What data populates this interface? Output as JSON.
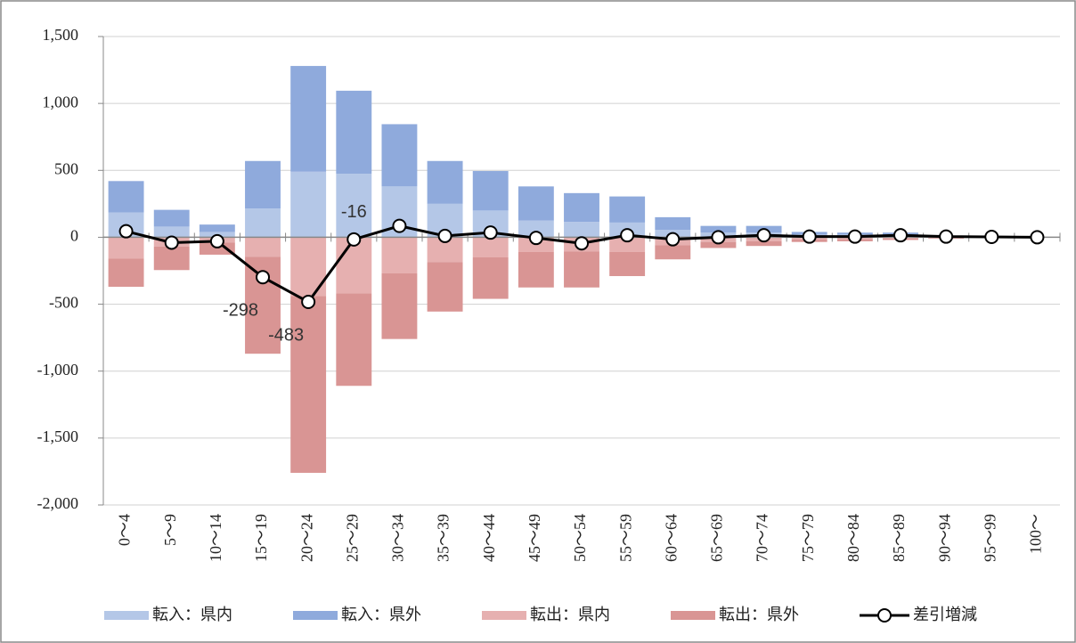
{
  "chart_data": {
    "type": "bar",
    "categories": [
      "0～4",
      "5～9",
      "10～14",
      "15～19",
      "20～24",
      "25～29",
      "30～34",
      "35～39",
      "40～44",
      "45～49",
      "50～54",
      "55～59",
      "60～64",
      "65～69",
      "70～74",
      "75～79",
      "80～84",
      "85～89",
      "90～94",
      "95～99",
      "100～"
    ],
    "series": [
      {
        "name": "転入：県内",
        "color": "#b4c7e7",
        "values": [
          185,
          80,
          40,
          215,
          490,
          475,
          380,
          250,
          200,
          125,
          115,
          110,
          55,
          35,
          35,
          20,
          20,
          15,
          5,
          2,
          0
        ]
      },
      {
        "name": "転入：県外",
        "color": "#8faadc",
        "values": [
          235,
          125,
          55,
          355,
          790,
          620,
          465,
          320,
          295,
          255,
          215,
          195,
          95,
          50,
          50,
          20,
          15,
          20,
          5,
          3,
          0
        ]
      },
      {
        "name": "転出：県内",
        "color": "#e6b0b0",
        "values": [
          -160,
          -70,
          -40,
          -145,
          -440,
          -420,
          -270,
          -185,
          -150,
          -110,
          -105,
          -110,
          -60,
          -35,
          -30,
          -15,
          -15,
          -10,
          -5,
          -2,
          0
        ]
      },
      {
        "name": "転出：県外",
        "color": "#d99594",
        "values": [
          -210,
          -175,
          -90,
          -725,
          -1320,
          -690,
          -490,
          -370,
          -310,
          -265,
          -270,
          -180,
          -105,
          -45,
          -35,
          -20,
          -15,
          -10,
          -5,
          -2,
          0
        ]
      },
      {
        "name": "差引増減",
        "color": "#000000",
        "type": "line",
        "values": [
          45,
          -40,
          -30,
          -298,
          -483,
          -16,
          85,
          10,
          35,
          -5,
          -45,
          15,
          -15,
          0,
          15,
          5,
          5,
          15,
          5,
          3,
          0
        ],
        "value_labels": [
          null,
          null,
          null,
          "-298",
          "-483",
          "-16",
          null,
          null,
          null,
          null,
          null,
          null,
          null,
          null,
          null,
          null,
          null,
          null,
          null,
          null,
          null
        ]
      }
    ],
    "ylim": [
      -2000,
      1500
    ],
    "yticks": [
      {
        "value": -2000,
        "label": "-2,000"
      },
      {
        "value": -1500,
        "label": "-1,500"
      },
      {
        "value": -1000,
        "label": "-1,000"
      },
      -500,
      0,
      500,
      {
        "value": 1000,
        "label": "1,000"
      },
      {
        "value": 1500,
        "label": "1,500"
      }
    ],
    "grid": true,
    "legend": "bottom"
  }
}
